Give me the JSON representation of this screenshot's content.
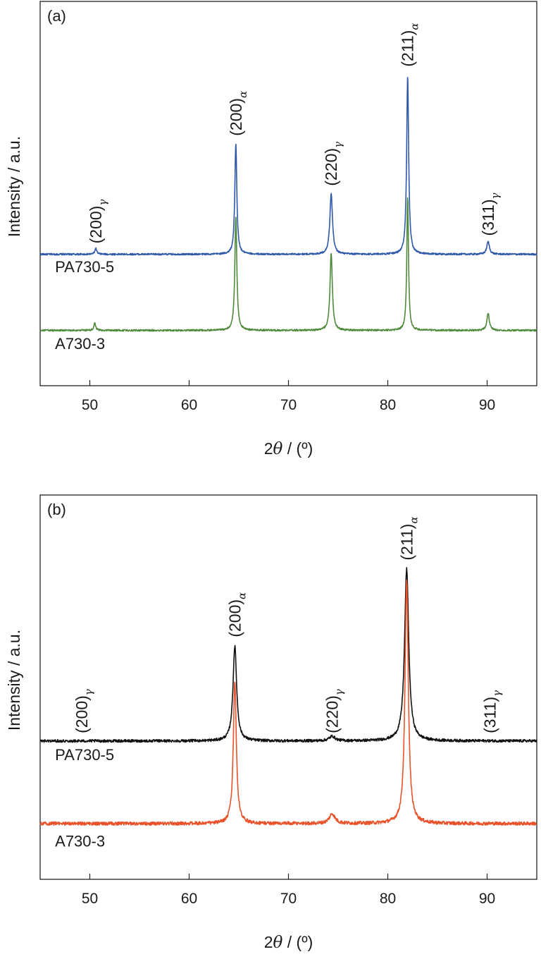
{
  "chart_data": [
    {
      "type": "line",
      "panel_label": "(a)",
      "xlabel_prefix": "2",
      "xlabel_symbol": "θ",
      "xlabel_suffix": " / (º)",
      "ylabel": "Intensity / a.u.",
      "xlim": [
        45,
        95
      ],
      "ylim": [
        0,
        100
      ],
      "x_ticks": [
        50,
        60,
        70,
        80,
        90
      ],
      "y_ticks_shown": false,
      "colors": {
        "PA730-5": "#2f59a8",
        "A730-3": "#4f8a3c"
      },
      "series": [
        {
          "name": "PA730-5",
          "color": "#2f59a8",
          "baseline": 34.2,
          "noise": 0.22,
          "peaks": [
            {
              "x": 50.6,
              "height": 1.5,
              "width": 0.12
            },
            {
              "x": 64.7,
              "height": 28.8,
              "width": 0.12
            },
            {
              "x": 74.3,
              "height": 15.7,
              "width": 0.16
            },
            {
              "x": 82.0,
              "height": 46.3,
              "width": 0.12
            },
            {
              "x": 90.1,
              "height": 3.3,
              "width": 0.16
            }
          ]
        },
        {
          "name": "A730-3",
          "color": "#4f8a3c",
          "baseline": 14.4,
          "noise": 0.22,
          "peaks": [
            {
              "x": 50.5,
              "height": 1.8,
              "width": 0.12
            },
            {
              "x": 64.7,
              "height": 29.6,
              "width": 0.12
            },
            {
              "x": 74.3,
              "height": 20.2,
              "width": 0.14
            },
            {
              "x": 82.0,
              "height": 35.0,
              "width": 0.1
            },
            {
              "x": 90.1,
              "height": 4.4,
              "width": 0.15
            }
          ]
        }
      ],
      "peak_annotations": [
        {
          "x": 50.6,
          "y": 37,
          "text": "(200)",
          "sub": "γ"
        },
        {
          "x": 64.7,
          "y": 65,
          "text": "(200)",
          "sub": "α"
        },
        {
          "x": 74.3,
          "y": 52,
          "text": "(220)",
          "sub": "γ"
        },
        {
          "x": 82.0,
          "y": 83,
          "text": "(211)",
          "sub": "α"
        },
        {
          "x": 90.1,
          "y": 39,
          "text": "(311)",
          "sub": "γ"
        }
      ],
      "sample_labels": [
        {
          "text": "PA730-5",
          "x": 46.5,
          "y": 29.5
        },
        {
          "text": "A730-3",
          "x": 46.5,
          "y": 9.5
        }
      ]
    },
    {
      "type": "line",
      "panel_label": "(b)",
      "xlabel_prefix": "2",
      "xlabel_symbol": "θ",
      "xlabel_suffix": " / (º)",
      "ylabel": "Intensity / a.u.",
      "xlim": [
        45,
        95
      ],
      "ylim": [
        0,
        100
      ],
      "x_ticks": [
        50,
        60,
        70,
        80,
        90
      ],
      "y_ticks_shown": false,
      "colors": {
        "PA730-5": "#111111",
        "A730-3": "#e8532b"
      },
      "series": [
        {
          "name": "PA730-5",
          "color": "#111111",
          "baseline": 36.0,
          "noise": 0.35,
          "peaks": [
            {
              "x": 64.6,
              "height": 24.7,
              "width": 0.22
            },
            {
              "x": 74.4,
              "height": 1.2,
              "width": 0.35
            },
            {
              "x": 81.9,
              "height": 44.8,
              "width": 0.25
            }
          ]
        },
        {
          "name": "A730-3",
          "color": "#e8532b",
          "baseline": 14.5,
          "noise": 0.45,
          "peaks": [
            {
              "x": 64.6,
              "height": 37.2,
              "width": 0.18
            },
            {
              "x": 74.4,
              "height": 2.5,
              "width": 0.35
            },
            {
              "x": 81.9,
              "height": 63.0,
              "width": 0.2
            }
          ]
        }
      ],
      "peak_annotations": [
        {
          "x": 49.2,
          "y": 38,
          "text": "(200)",
          "sub": "γ"
        },
        {
          "x": 64.6,
          "y": 63,
          "text": "(200)",
          "sub": "α"
        },
        {
          "x": 74.4,
          "y": 38,
          "text": "(220)",
          "sub": "γ"
        },
        {
          "x": 81.9,
          "y": 83,
          "text": "(211)",
          "sub": "α"
        },
        {
          "x": 90.3,
          "y": 38,
          "text": "(311)",
          "sub": "γ"
        }
      ],
      "sample_labels": [
        {
          "text": "PA730-5",
          "x": 46.5,
          "y": 31.0
        },
        {
          "text": "A730-3",
          "x": 46.5,
          "y": 8.5
        }
      ]
    }
  ]
}
